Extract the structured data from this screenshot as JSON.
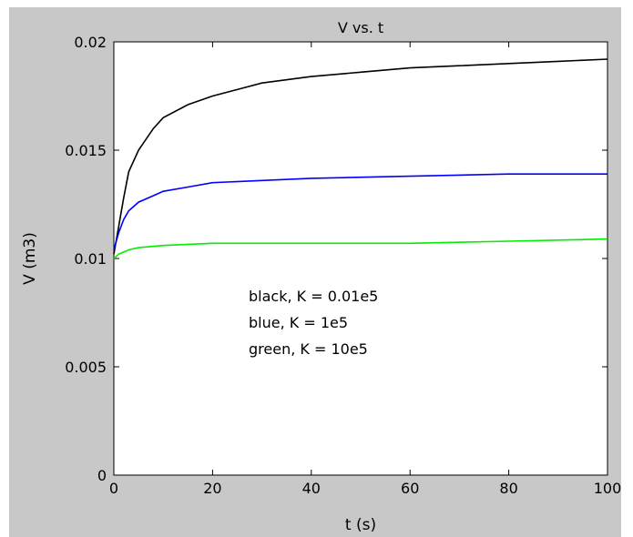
{
  "chart_data": {
    "type": "line",
    "title": "V vs. t",
    "xlabel": "t (s)",
    "ylabel": "V (m3)",
    "xlim": [
      0,
      100
    ],
    "ylim": [
      0,
      0.02
    ],
    "xticks": [
      0,
      20,
      40,
      60,
      80,
      100
    ],
    "yticks": [
      0,
      0.005,
      0.01,
      0.015,
      0.02
    ],
    "xtick_labels": [
      "0",
      "20",
      "40",
      "60",
      "80",
      "100"
    ],
    "ytick_labels": [
      "0",
      "0.005",
      "0.01",
      "0.015",
      "0.02"
    ],
    "grid": false,
    "annotations": [
      "black, K = 0.01e5",
      "blue, K = 1e5",
      "green, K = 10e5"
    ],
    "series": [
      {
        "color": "#000000",
        "x": [
          0,
          1,
          2,
          3,
          5,
          8,
          10,
          15,
          20,
          25,
          30,
          40,
          50,
          60,
          70,
          80,
          90,
          100
        ],
        "y": [
          0.0102,
          0.0115,
          0.0128,
          0.014,
          0.015,
          0.016,
          0.0165,
          0.0171,
          0.0175,
          0.0178,
          0.0181,
          0.0184,
          0.0186,
          0.0188,
          0.0189,
          0.019,
          0.0191,
          0.0192
        ]
      },
      {
        "color": "#0000ff",
        "x": [
          0,
          1,
          2,
          3,
          5,
          8,
          10,
          15,
          20,
          30,
          40,
          60,
          80,
          100
        ],
        "y": [
          0.0104,
          0.0112,
          0.0118,
          0.0122,
          0.0126,
          0.0129,
          0.0131,
          0.0133,
          0.0135,
          0.0136,
          0.0137,
          0.0138,
          0.0139,
          0.0139
        ]
      },
      {
        "color": "#00ee00",
        "x": [
          0,
          1,
          3,
          5,
          10,
          20,
          40,
          60,
          80,
          100
        ],
        "y": [
          0.01,
          0.0102,
          0.0104,
          0.0105,
          0.0106,
          0.0107,
          0.0107,
          0.0107,
          0.0108,
          0.0109
        ]
      }
    ]
  }
}
